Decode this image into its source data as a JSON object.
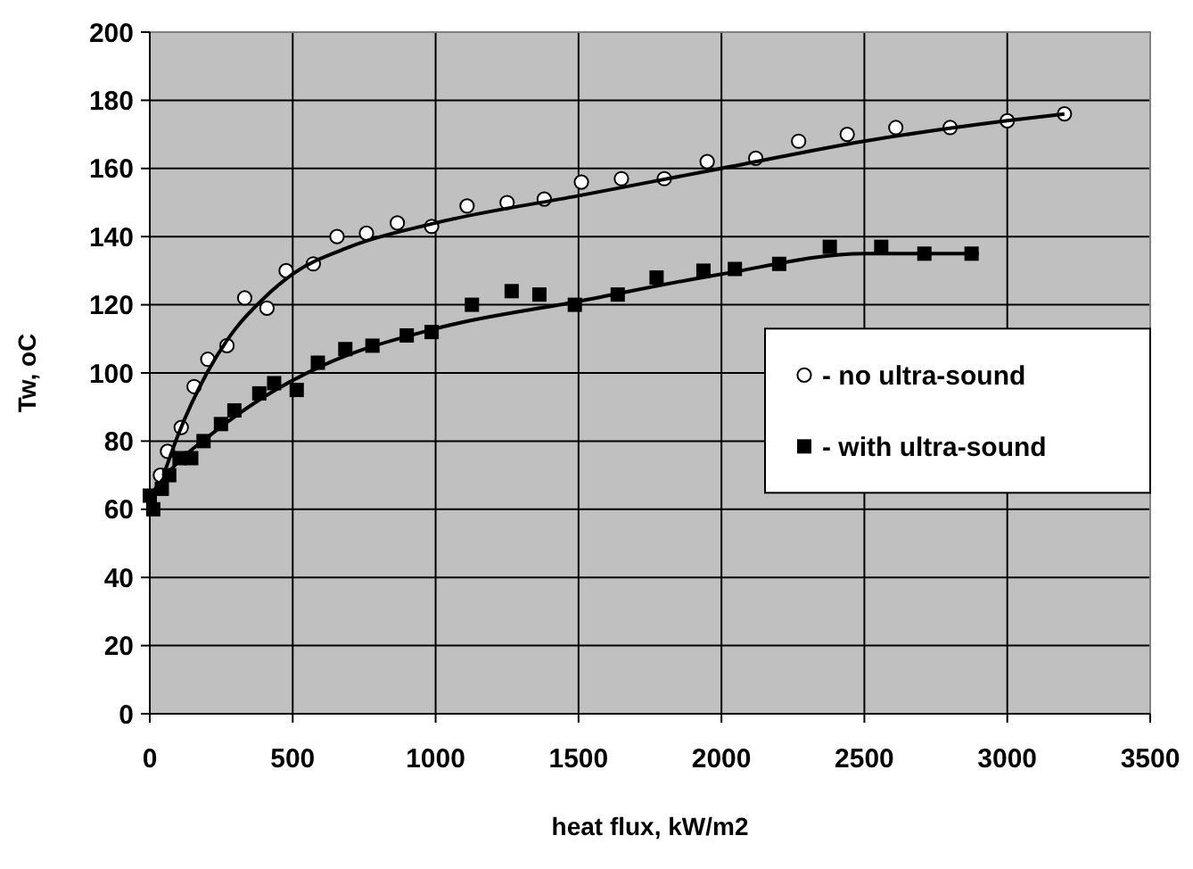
{
  "chart_data": {
    "type": "scatter",
    "xlabel": "heat flux, kW/m2",
    "ylabel": "Tw, oC",
    "xlim": [
      0,
      3500
    ],
    "ylim": [
      0,
      200
    ],
    "xticks": [
      0,
      500,
      1000,
      1500,
      2000,
      2500,
      3000,
      3500
    ],
    "yticks": [
      0,
      20,
      40,
      60,
      80,
      100,
      120,
      140,
      160,
      180,
      200
    ],
    "grid": true,
    "legend": "right",
    "series": [
      {
        "name": "- no ultra-sound",
        "color": "#000000",
        "marker": "circle",
        "x": [
          37,
          62,
          110,
          155,
          203,
          270,
          332,
          410,
          477,
          572,
          655,
          758,
          866,
          986,
          1110,
          1250,
          1380,
          1510,
          1650,
          1800,
          1950,
          2120,
          2270,
          2440,
          2610,
          2800,
          3000,
          3200
        ],
        "values": [
          70,
          77,
          84,
          96,
          104,
          108,
          122,
          119,
          130,
          132,
          140,
          141,
          144,
          143,
          149,
          150,
          151,
          156,
          157,
          157,
          162,
          163,
          168,
          170,
          172,
          172,
          174,
          176
        ]
      },
      {
        "name": "- with ultra-sound",
        "color": "#000000",
        "marker": "square",
        "x": [
          0,
          12,
          42,
          68,
          104,
          145,
          188,
          249,
          296,
          383,
          435,
          514,
          588,
          684,
          779,
          899,
          986,
          1127,
          1266,
          1363,
          1487,
          1637,
          1773,
          1937,
          2047,
          2202,
          2379,
          2559,
          2710,
          2875
        ],
        "values": [
          64,
          60,
          66,
          70,
          75,
          75,
          80,
          85,
          89,
          94,
          97,
          95,
          103,
          107,
          108,
          111,
          112,
          120,
          124,
          123,
          120,
          123,
          128,
          130,
          130.5,
          132,
          137,
          137,
          135,
          135
        ]
      },
      {
        "type": "line",
        "color": "#000000",
        "marker": "none",
        "x": [
          48,
          100,
          200,
          300,
          400,
          500,
          700,
          1000,
          1500,
          2000,
          2500,
          3000,
          3200
        ],
        "values": [
          70,
          82,
          100,
          113,
          122,
          129,
          137,
          144,
          152,
          160,
          168,
          174,
          176
        ]
      },
      {
        "type": "line",
        "color": "#000000",
        "marker": "none",
        "x": [
          0,
          100,
          200,
          400,
          600,
          1000,
          1500,
          2000,
          2500,
          2900
        ],
        "values": [
          64,
          74,
          81,
          93,
          102,
          113,
          121,
          129,
          135,
          135
        ]
      }
    ]
  }
}
